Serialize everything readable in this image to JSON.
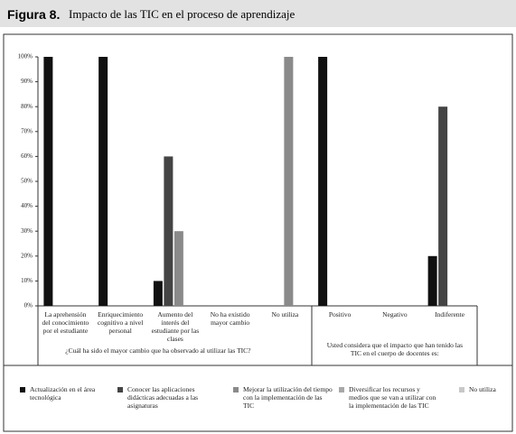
{
  "header": {
    "label": "Figura 8.",
    "title": "Impacto de las TIC en el proceso de aprendizaje"
  },
  "chart_data": {
    "type": "bar",
    "groups": [
      {
        "xlabel": "¿Cuál ha sido el mayor cambio que ha observado al utilizar las TIC?",
        "categories": [
          "La aprehensión del conocimiento por el estudiante",
          "Enriquecimiento cognitivo a nivel personal",
          "Aumento del interés del estudiante por las clases",
          "No ha existido mayor cambio",
          "No utiliza"
        ]
      },
      {
        "xlabel": "Usted considera que el impacto que han tenido las TIC en el cuerpo de docentes es:",
        "categories": [
          "Positivo",
          "Negativo",
          "Indiferente"
        ]
      }
    ],
    "series": [
      {
        "name": "Actualización en el área tecnológica",
        "color": "#111111",
        "values": [
          100,
          100,
          10,
          null,
          null,
          100,
          null,
          20
        ]
      },
      {
        "name": "Conocer las aplicaciones didácticas adecuadas a las asignaturas",
        "color": "#444444",
        "values": [
          null,
          null,
          60,
          null,
          null,
          null,
          null,
          80
        ]
      },
      {
        "name": "Mejorar la utilización del tiempo con la implementación de las TIC",
        "color": "#8a8a8a",
        "values": [
          null,
          null,
          30,
          null,
          100,
          null,
          null,
          null
        ]
      },
      {
        "name": "Diversificar los recursos y medios que se van a utilizar con la implementación de las TIC",
        "color": "#a8a8a8",
        "values": [
          null,
          null,
          null,
          null,
          null,
          null,
          null,
          null
        ]
      },
      {
        "name": "No utiliza",
        "color": "#c8c8c8",
        "values": [
          null,
          null,
          null,
          null,
          null,
          null,
          null,
          null
        ]
      }
    ],
    "ylim": [
      0,
      100
    ],
    "yticks": [
      {
        "value": 0,
        "label": "0%"
      },
      {
        "value": 10,
        "label": "10%"
      },
      {
        "value": 20,
        "label": "20%"
      },
      {
        "value": 30,
        "label": "30%"
      },
      {
        "value": 40,
        "label": "40%"
      },
      {
        "value": 50,
        "label": "50%"
      },
      {
        "value": 60,
        "label": "60%"
      },
      {
        "value": 70,
        "label": "70%"
      },
      {
        "value": 80,
        "label": "80%"
      },
      {
        "value": 90,
        "label": "90%"
      },
      {
        "value": 100,
        "label": "100%"
      }
    ]
  }
}
